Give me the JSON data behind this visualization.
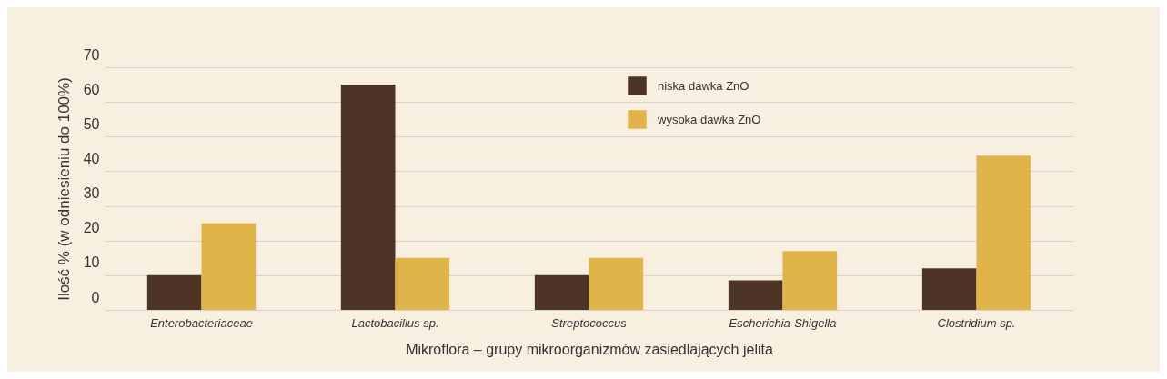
{
  "chart_data": {
    "type": "bar",
    "xlabel": "Mikroflora – grupy mikroorganizmów zasiedlających jelita",
    "ylabel": "Ilość % (w odniesieniu do 100%)",
    "categories": [
      "Enterobacteriaceae",
      "Lactobacillus sp.",
      "Streptococcus",
      "Escherichia-Shigella",
      "Clostridium sp."
    ],
    "series": [
      {
        "name": "niska dawka ZnO",
        "color": "#4e3426",
        "values": [
          10,
          65,
          10,
          8.5,
          12
        ]
      },
      {
        "name": "wysoka dawka ZnO",
        "color": "#e0b448",
        "values": [
          25,
          15,
          15,
          17,
          44.5
        ]
      }
    ],
    "ylim": [
      0,
      70
    ],
    "yticks": [
      0,
      10,
      20,
      30,
      40,
      50,
      60,
      70
    ],
    "grid": "y",
    "legend": "top right"
  }
}
